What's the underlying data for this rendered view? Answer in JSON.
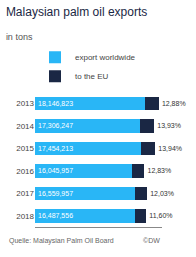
{
  "chart_data": {
    "type": "bar",
    "orientation": "horizontal",
    "stacked": true,
    "title": "Malaysian palm oil exports",
    "subtitle": "in tons",
    "categories": [
      "2013",
      "2014",
      "2015",
      "2016",
      "2017",
      "2018"
    ],
    "series": [
      {
        "name": "export worldwide",
        "color": "#29b6f6",
        "values": [
          18146823,
          17306247,
          17454213,
          16045957,
          16559957,
          16487556
        ],
        "value_labels": [
          "18,146,823",
          "17,306,247",
          "17,454,213",
          "16,045,957",
          "16,559,957",
          "16,487,556"
        ]
      },
      {
        "name": "to the EU",
        "color": "#1a2744",
        "values": [
          2337310.8024,
          2410760.2071,
          2433117.2922,
          2058696.2831,
          1992162.8271,
          1912556.496
        ],
        "shares": [
          12.88,
          13.93,
          13.94,
          12.83,
          12.03,
          11.6
        ],
        "share_labels": [
          "12,88%",
          "13,93%",
          "13,94%",
          "12,83%",
          "12,03%",
          "11,60%"
        ]
      }
    ],
    "xlim": [
      0,
      21000000
    ],
    "tick_labels": "y",
    "grid": false,
    "legend": "upper left",
    "data_labels": true,
    "annotations": [
      "Quelle: Malaysian Palm Oil Board",
      "©DW"
    ]
  }
}
